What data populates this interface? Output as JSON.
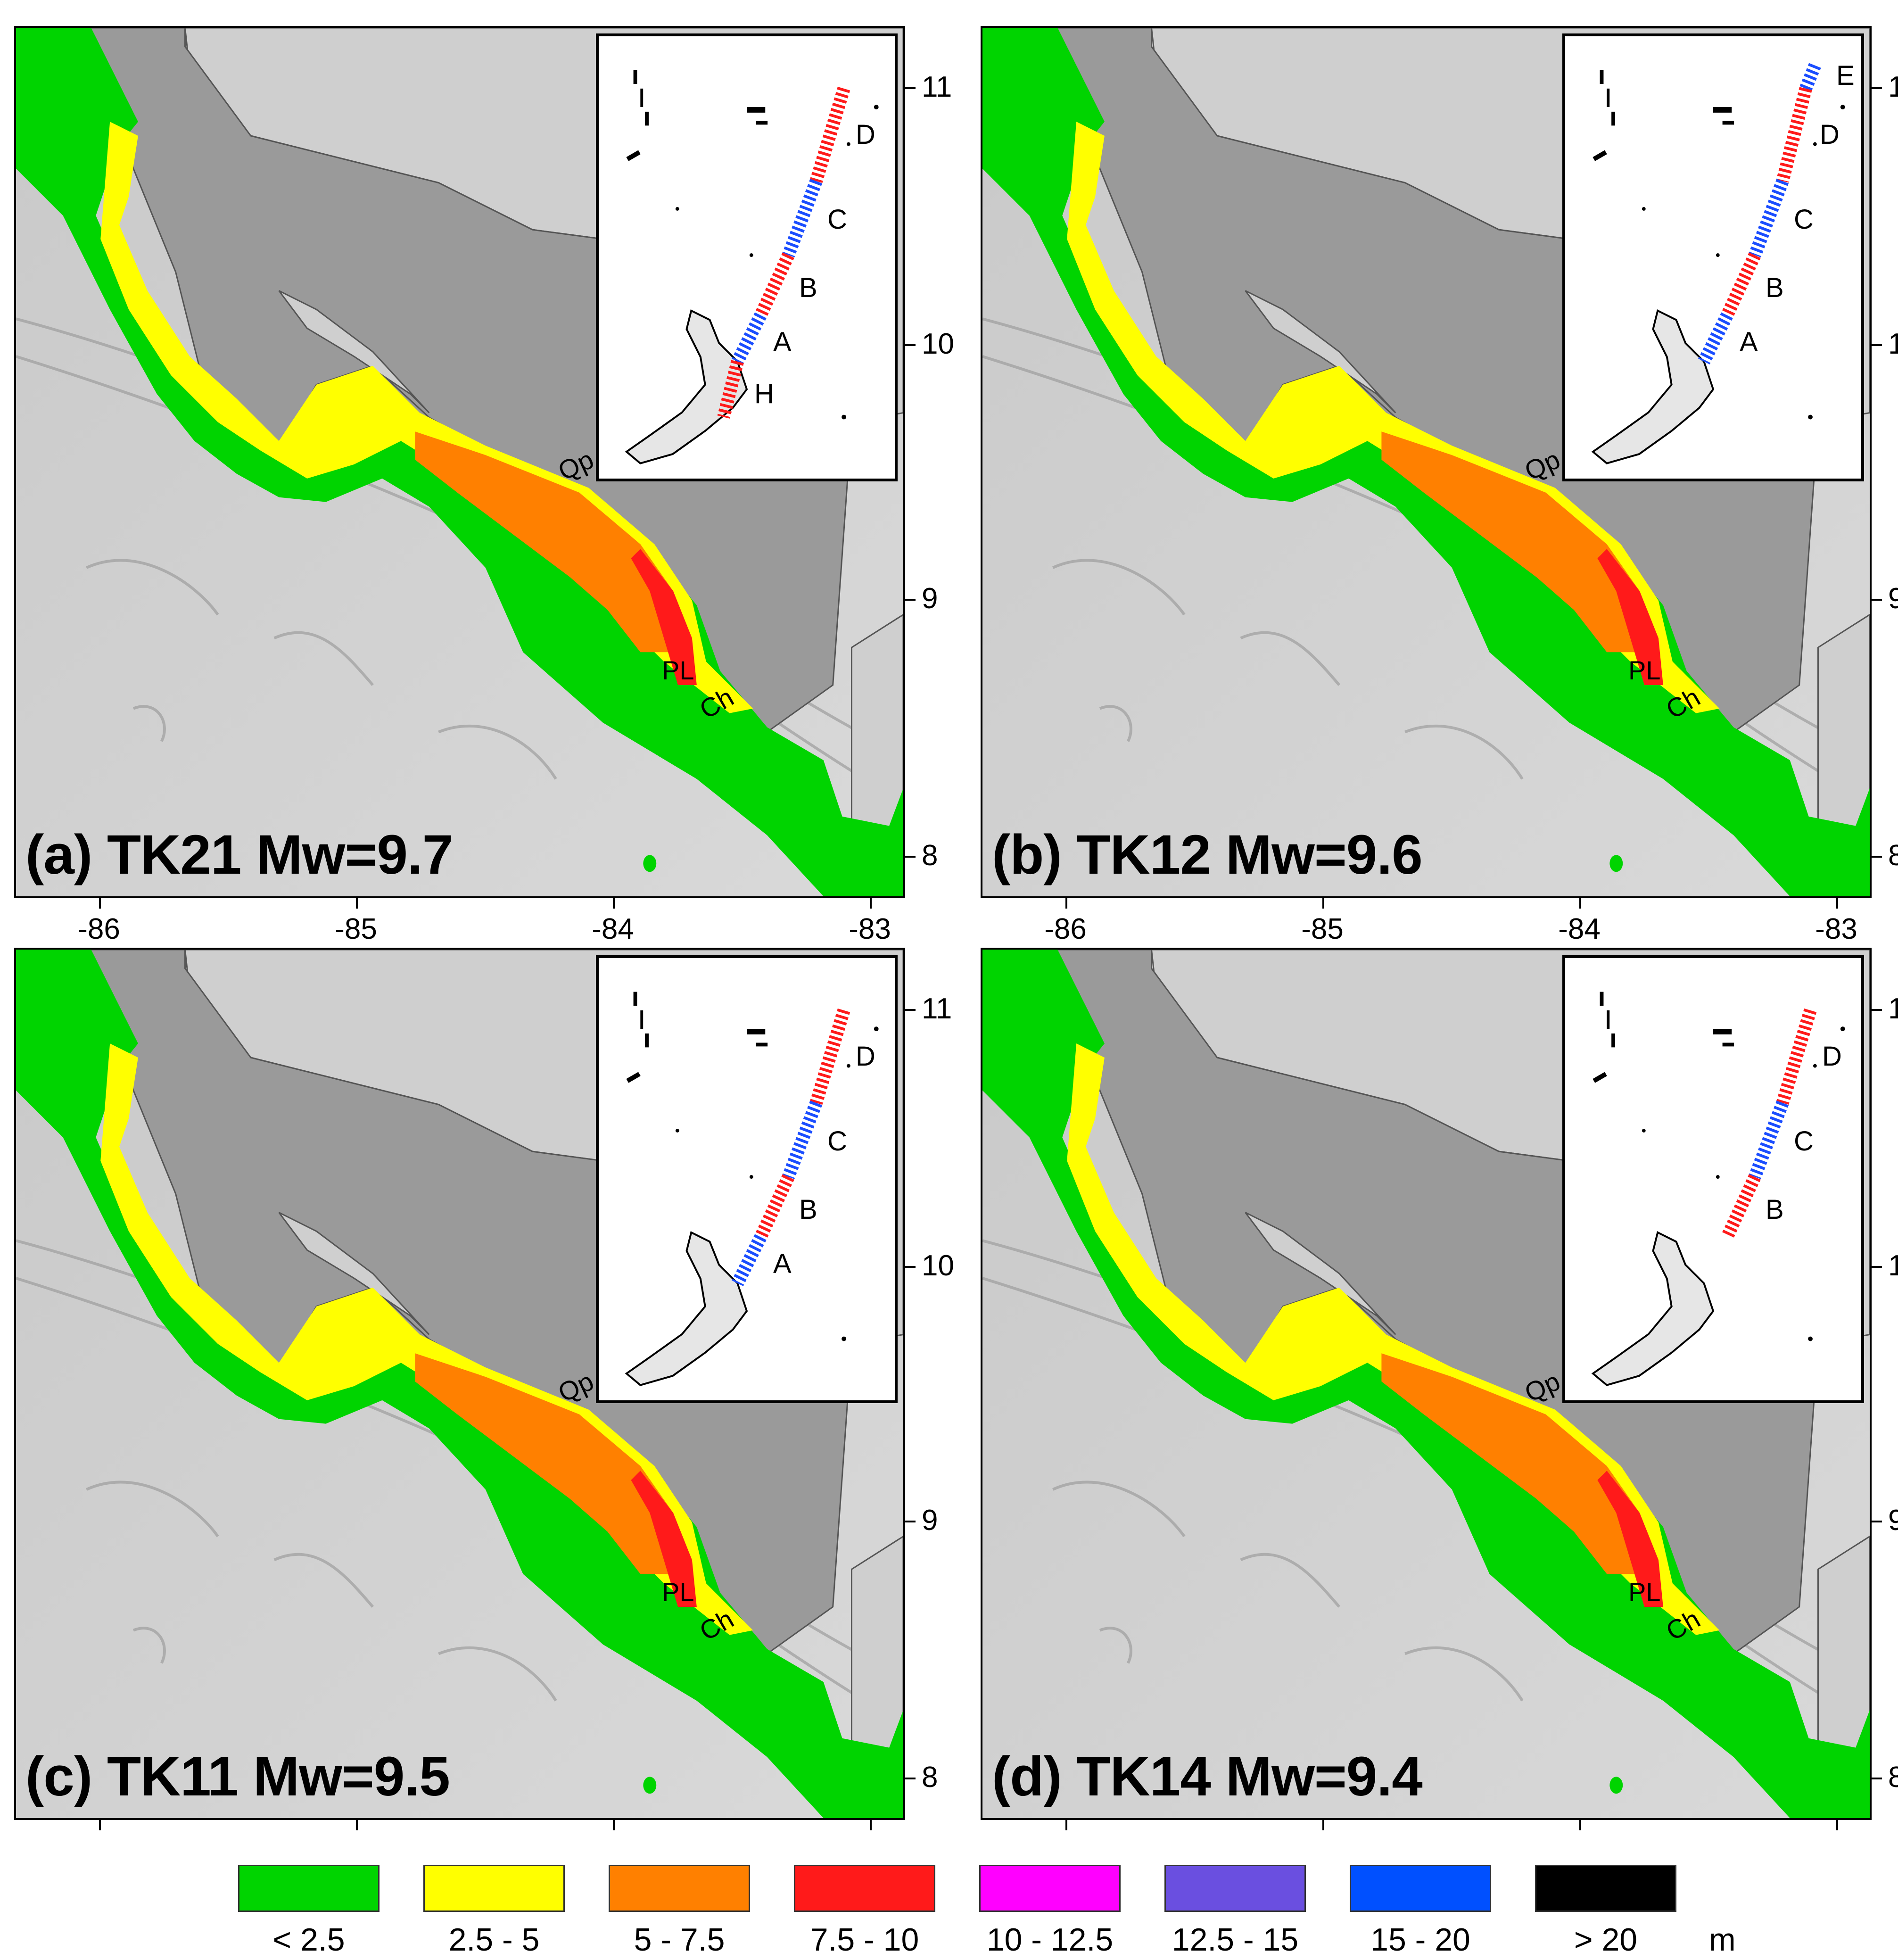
{
  "panels": [
    {
      "title": "(a) TK21 Mw=9.7",
      "segments": [
        {
          "label": "D",
          "color": "red"
        },
        {
          "label": "C",
          "color": "blue"
        },
        {
          "label": "B",
          "color": "red"
        },
        {
          "label": "A",
          "color": "blue"
        },
        {
          "label": "H",
          "color": "red"
        }
      ]
    },
    {
      "title": "(b) TK12 Mw=9.6",
      "segments": [
        {
          "label": "E",
          "color": "blue"
        },
        {
          "label": "D",
          "color": "red"
        },
        {
          "label": "C",
          "color": "blue"
        },
        {
          "label": "B",
          "color": "red"
        },
        {
          "label": "A",
          "color": "blue"
        }
      ]
    },
    {
      "title": "(c) TK11 Mw=9.5",
      "segments": [
        {
          "label": "D",
          "color": "red"
        },
        {
          "label": "C",
          "color": "blue"
        },
        {
          "label": "B",
          "color": "red"
        },
        {
          "label": "A",
          "color": "blue"
        }
      ]
    },
    {
      "title": "(d) TK14 Mw=9.4",
      "segments": [
        {
          "label": "D",
          "color": "red"
        },
        {
          "label": "C",
          "color": "blue"
        },
        {
          "label": "B",
          "color": "red"
        }
      ]
    }
  ],
  "places": {
    "qp": "Qp",
    "pl": "PL",
    "ch": "Ch"
  },
  "axes": {
    "x_ticks": [
      "-86",
      "-85",
      "-84",
      "-83"
    ],
    "y_ticks": [
      "11",
      "10",
      "9",
      "8"
    ]
  },
  "legend": {
    "unit": "m",
    "items": [
      {
        "label": "< 2.5",
        "color": "#00d400"
      },
      {
        "label": "2.5 - 5",
        "color": "#ffff00"
      },
      {
        "label": "5 - 7.5",
        "color": "#ff8000"
      },
      {
        "label": "7.5 - 10",
        "color": "#ff1a1a"
      },
      {
        "label": "10 - 12.5",
        "color": "#ff00ff"
      },
      {
        "label": "12.5 - 15",
        "color": "#6a4fe0"
      },
      {
        "label": "15 - 20",
        "color": "#0050ff"
      },
      {
        "label": "> 20",
        "color": "#000000"
      }
    ]
  },
  "colors": {
    "land": "#999999",
    "land_light": "#cccccc",
    "sea": "#b5b5b5",
    "segment_red": "#ff1a1a",
    "segment_blue": "#1a4dff"
  }
}
